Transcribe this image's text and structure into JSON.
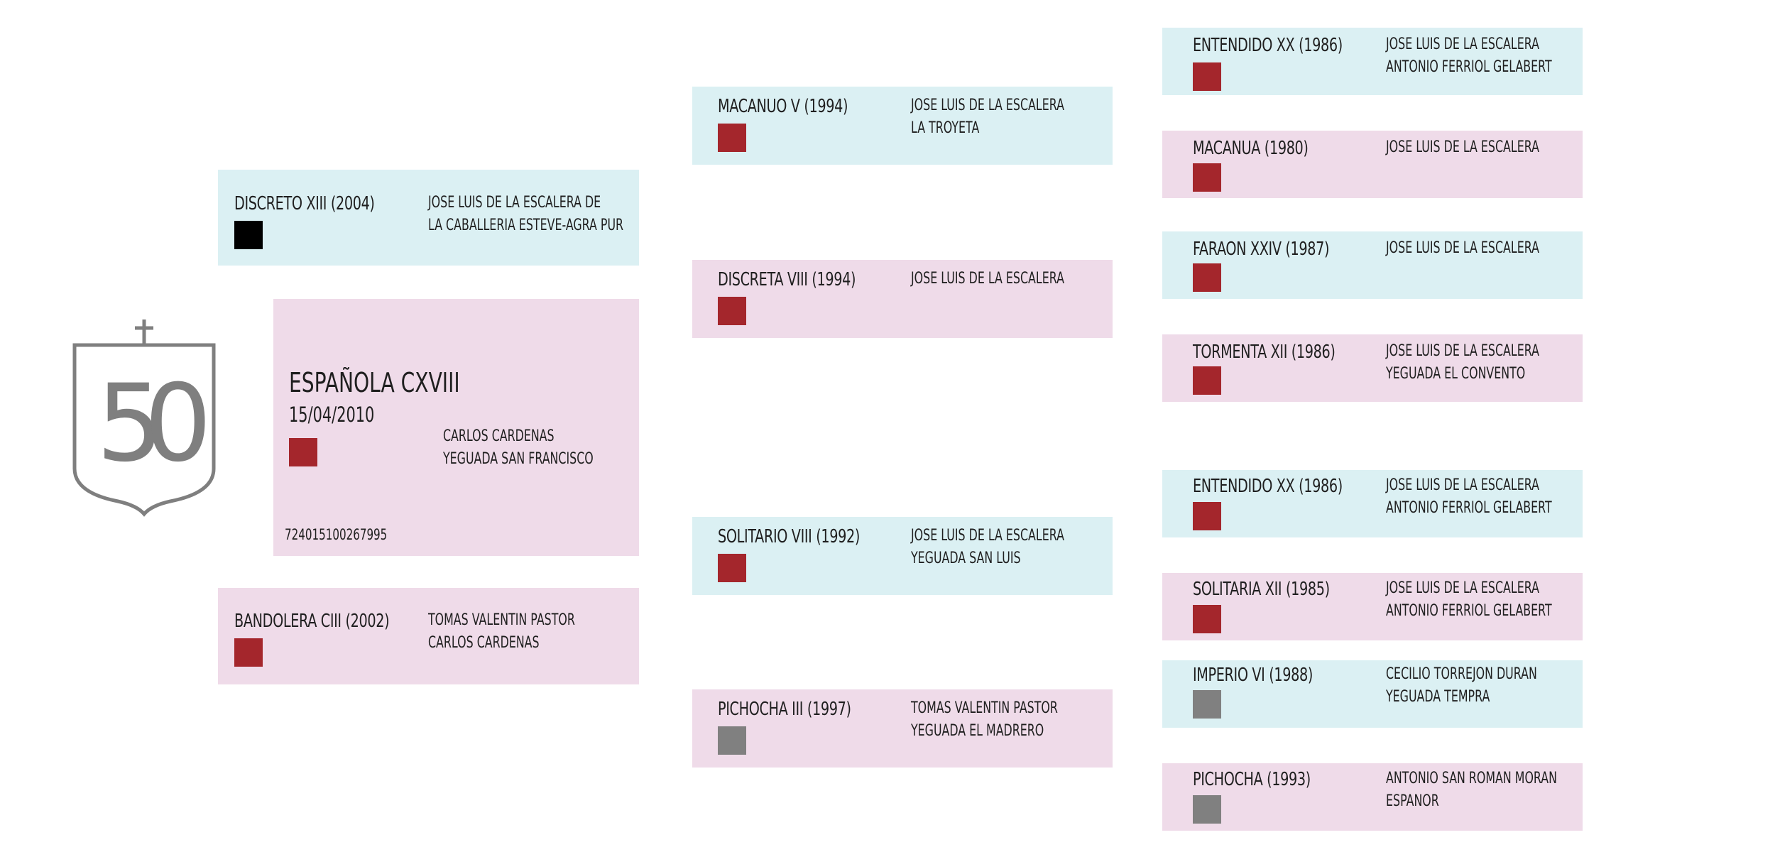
{
  "colors": {
    "male_bg": "#dbf0f3",
    "female_bg": "#efdbe9",
    "coat_red": "#a4262c",
    "coat_black": "#000000",
    "coat_gray": "#808080",
    "logo_gray": "#7f7f7f"
  },
  "logo": {
    "icon": "shield-cross-50-emblem",
    "text": "50"
  },
  "subject": {
    "name": "ESPAÑOLA CXVIII",
    "date": "15/04/2010",
    "owners": [
      "CARLOS CARDENAS",
      "YEGUADA SAN FRANCISCO"
    ],
    "chip": "724015100267995",
    "coat": "red"
  },
  "parents": {
    "sire": {
      "name": "DISCRETO XIII (2004)",
      "owners": [
        "JOSE LUIS DE LA ESCALERA DE",
        "LA CABALLERIA ESTEVE-AGRA PUR"
      ],
      "coat": "black"
    },
    "dam": {
      "name": "BANDOLERA CIII (2002)",
      "owners": [
        "TOMAS VALENTIN PASTOR",
        "CARLOS CARDENAS"
      ],
      "coat": "red"
    }
  },
  "grandparents": {
    "ss": {
      "name": "MACANUO V (1994)",
      "owners": [
        "JOSE LUIS DE LA ESCALERA",
        "LA TROYETA"
      ],
      "coat": "red"
    },
    "sd": {
      "name": "DISCRETA VIII (1994)",
      "owners": [
        "JOSE LUIS DE LA ESCALERA"
      ],
      "coat": "red"
    },
    "ds": {
      "name": "SOLITARIO VIII (1992)",
      "owners": [
        "JOSE LUIS DE LA ESCALERA",
        "YEGUADA SAN LUIS"
      ],
      "coat": "red"
    },
    "dd": {
      "name": "PICHOCHA III (1997)",
      "owners": [
        "TOMAS VALENTIN PASTOR",
        "YEGUADA EL MADRERO"
      ],
      "coat": "gray"
    }
  },
  "great_grandparents": {
    "sss": {
      "name": "ENTENDIDO XX (1986)",
      "owners": [
        "JOSE LUIS DE LA ESCALERA",
        "ANTONIO FERRIOL GELABERT"
      ],
      "coat": "red"
    },
    "ssd": {
      "name": "MACANUA (1980)",
      "owners": [
        "JOSE LUIS DE LA ESCALERA"
      ],
      "coat": "red"
    },
    "sds": {
      "name": "FARAON XXIV (1987)",
      "owners": [
        "JOSE LUIS DE LA ESCALERA"
      ],
      "coat": "red"
    },
    "sdd": {
      "name": "TORMENTA XII (1986)",
      "owners": [
        "JOSE LUIS DE LA ESCALERA",
        "YEGUADA EL CONVENTO"
      ],
      "coat": "red"
    },
    "dss": {
      "name": "ENTENDIDO XX (1986)",
      "owners": [
        "JOSE LUIS DE LA ESCALERA",
        "ANTONIO FERRIOL GELABERT"
      ],
      "coat": "red"
    },
    "dsd": {
      "name": "SOLITARIA XII (1985)",
      "owners": [
        "JOSE LUIS DE LA ESCALERA",
        "ANTONIO FERRIOL GELABERT"
      ],
      "coat": "red"
    },
    "dds": {
      "name": "IMPERIO VI (1988)",
      "owners": [
        "CECILIO TORREJON DURAN",
        "YEGUADA TEMPRA"
      ],
      "coat": "gray"
    },
    "ddd": {
      "name": "PICHOCHA (1993)",
      "owners": [
        "ANTONIO SAN ROMAN MORAN",
        "ESPANOR"
      ],
      "coat": "gray"
    }
  }
}
